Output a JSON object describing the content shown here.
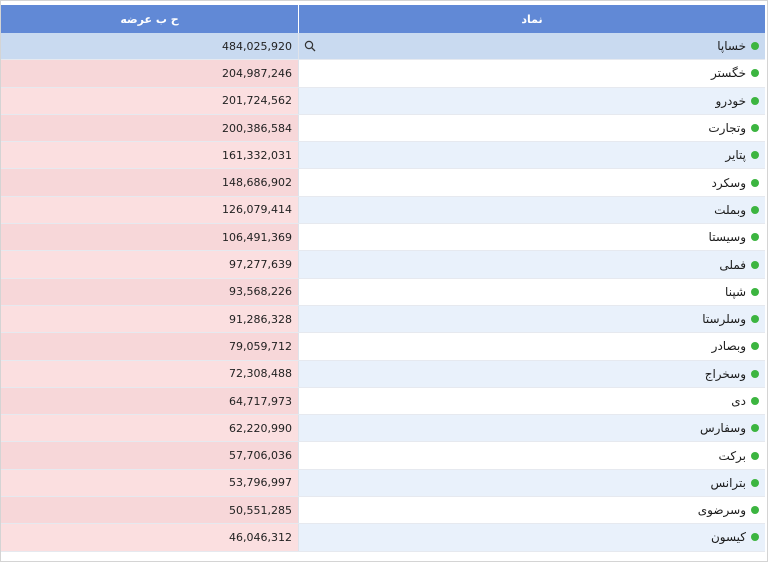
{
  "columns": {
    "volume": "ح ب عرضه",
    "symbol": "نماد"
  },
  "colors": {
    "header": "#6189d6",
    "status_dot": "#3cb540",
    "volume_cell": "#fbdfe0",
    "selected_row": "#c9daf0"
  },
  "icons": {
    "row_search": "search-icon",
    "status": "status-dot-icon"
  },
  "rows": [
    {
      "symbol": "خساپا",
      "volume": "484,025,920"
    },
    {
      "symbol": "خگستر",
      "volume": "204,987,246"
    },
    {
      "symbol": "خودرو",
      "volume": "201,724,562"
    },
    {
      "symbol": "وتجارت",
      "volume": "200,386,584"
    },
    {
      "symbol": "پتاير",
      "volume": "161,332,031"
    },
    {
      "symbol": "وسکرد",
      "volume": "148,686,902"
    },
    {
      "symbol": "وبملت",
      "volume": "126,079,414"
    },
    {
      "symbol": "وسيستا",
      "volume": "106,491,369"
    },
    {
      "symbol": "فملی",
      "volume": "97,277,639"
    },
    {
      "symbol": "شپنا",
      "volume": "93,568,226"
    },
    {
      "symbol": "وسلرستا",
      "volume": "91,286,328"
    },
    {
      "symbol": "وبصادر",
      "volume": "79,059,712"
    },
    {
      "symbol": "وسخراج",
      "volume": "72,308,488"
    },
    {
      "symbol": "دی",
      "volume": "64,717,973"
    },
    {
      "symbol": "وسفارس",
      "volume": "62,220,990"
    },
    {
      "symbol": "برکت",
      "volume": "57,706,036"
    },
    {
      "symbol": "بترانس",
      "volume": "53,796,997"
    },
    {
      "symbol": "وسرضوی",
      "volume": "50,551,285"
    },
    {
      "symbol": "کیسون",
      "volume": "46,046,312"
    }
  ]
}
